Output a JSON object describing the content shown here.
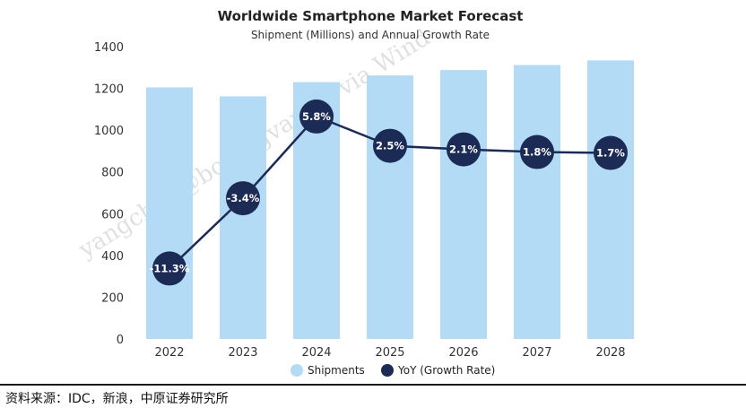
{
  "chart_data": {
    "type": "bar+line",
    "title": "Worldwide Smartphone Market Forecast",
    "subtitle": "Shipment (Millions) and Annual Growth Rate",
    "categories": [
      "2022",
      "2023",
      "2024",
      "2025",
      "2026",
      "2027",
      "2028"
    ],
    "series": [
      {
        "name": "Shipments",
        "kind": "bar",
        "color": "#b3dbf5",
        "values": [
          1205,
          1162,
          1230,
          1262,
          1288,
          1312,
          1334
        ]
      },
      {
        "name": "YoY (Growth Rate)",
        "kind": "line",
        "color": "#1b2b55",
        "values": [
          -11.3,
          -3.4,
          5.8,
          2.5,
          2.1,
          1.8,
          1.7
        ],
        "labels": [
          "-11.3%",
          "-3.4%",
          "5.8%",
          "2.5%",
          "2.1%",
          "1.8%",
          "1.7%"
        ]
      }
    ],
    "yticks": [
      "0",
      "200",
      "400",
      "600",
      "800",
      "1000",
      "1200",
      "1400"
    ],
    "ylim": [
      0,
      1400
    ],
    "legend_position": "bottom-center",
    "watermark_text": "yangchun@botongvap.cn via Wind"
  },
  "source": {
    "text": "资料来源：IDC，新浪，中原证券研究所"
  },
  "colors": {
    "bar": "#b3dbf5",
    "line": "#1b2b55",
    "text": "#222222"
  }
}
